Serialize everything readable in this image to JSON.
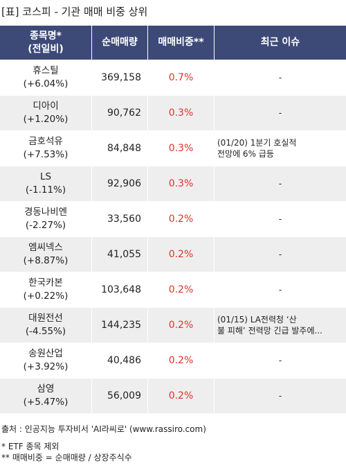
{
  "title": "[표] 코스피 - 기관 매매 비중 상위",
  "headers": {
    "name_line1": "종목명*",
    "name_line2": "(전일비)",
    "volume": "순매매량",
    "ratio": "매매비중**",
    "issue": "최근 이슈"
  },
  "rows": [
    {
      "name": "휴스틸",
      "change": "(+6.04%)",
      "volume": "369,158",
      "ratio": "0.7%",
      "issue": "-"
    },
    {
      "name": "디아이",
      "change": "(+1.20%)",
      "volume": "90,762",
      "ratio": "0.3%",
      "issue": "-"
    },
    {
      "name": "금호석유",
      "change": "(+7.53%)",
      "volume": "84,848",
      "ratio": "0.3%",
      "issue": "(01/20) 1분기 호실적\n전망에 6% 급등"
    },
    {
      "name": "LS",
      "change": "(-1.11%)",
      "volume": "92,906",
      "ratio": "0.3%",
      "issue": "-"
    },
    {
      "name": "경동나비엔",
      "change": "(-2.27%)",
      "volume": "33,560",
      "ratio": "0.2%",
      "issue": "-"
    },
    {
      "name": "엠씨넥스",
      "change": "(+8.87%)",
      "volume": "41,055",
      "ratio": "0.2%",
      "issue": "-"
    },
    {
      "name": "한국카본",
      "change": "(+0.22%)",
      "volume": "103,648",
      "ratio": "0.2%",
      "issue": "-"
    },
    {
      "name": "대원전선",
      "change": "(-4.55%)",
      "volume": "144,235",
      "ratio": "0.2%",
      "issue": "(01/15) LA전력청 ‘산\n불 피해’ 전력망 긴급 발주에..."
    },
    {
      "name": "송원산업",
      "change": "(+3.92%)",
      "volume": "40,486",
      "ratio": "0.2%",
      "issue": "-"
    },
    {
      "name": "삼영",
      "change": "(+5.47%)",
      "volume": "56,009",
      "ratio": "0.2%",
      "issue": "-"
    }
  ],
  "footer": {
    "source": "출처 : 인공지능 투자비서 'AI라씨로' (www.rassiro.com)",
    "note1": "* ETF 종목 제외",
    "note2": "** 매매비중 = 순매매량 / 상장주식수"
  },
  "colors": {
    "header_bg": "#3d4a78",
    "ratio_text": "#e0302a",
    "stripe": "#eeeeee"
  }
}
